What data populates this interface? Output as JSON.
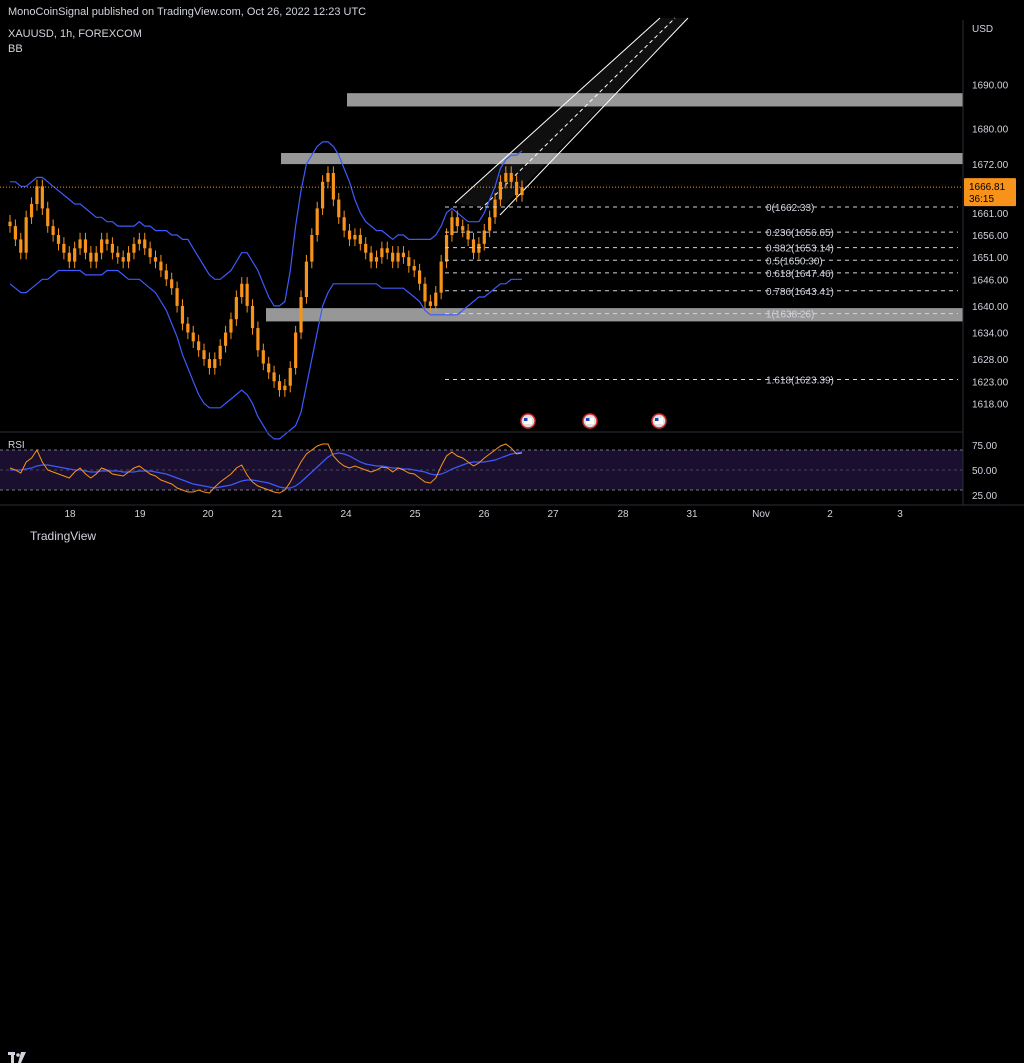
{
  "header": {
    "published": "MonoCoinSignal published on TradingView.com, Oct 26, 2022 12:23 UTC",
    "symbol": "XAUUSD, 1h, FOREXCOM",
    "indicator": "BB",
    "currency": "USD",
    "rsi_label": "RSI"
  },
  "price_tag": {
    "price": "1666.81",
    "countdown": "36:15"
  },
  "footer": {
    "brand": "TradingView"
  },
  "colors": {
    "candle": "#f7931a",
    "band": "#3d5afe",
    "zone": "#b2b2b2",
    "rsi_line": "#f7931a",
    "rsi_ma": "#3d5afe",
    "rsi_bg": "#1a0f2e",
    "text": "#d1d4dc"
  },
  "chart_data": {
    "type": "line",
    "symbol": "XAUUSD",
    "timeframe": "1h",
    "ylim": [
      1612,
      1700
    ],
    "y_ticks": [
      "1690.00",
      "1680.00",
      "1672.00",
      "1661.00",
      "1656.00",
      "1651.00",
      "1646.00",
      "1640.00",
      "1634.00",
      "1628.00",
      "1623.00",
      "1618.00"
    ],
    "x_ticks": [
      "18",
      "19",
      "20",
      "21",
      "24",
      "25",
      "26",
      "27",
      "28",
      "31",
      "Nov",
      "2",
      "3"
    ],
    "last_price": 1666.81,
    "fib_levels": [
      {
        "label": "0(1662.33)",
        "value": 1662.33
      },
      {
        "label": "0.236(1656.65)",
        "value": 1656.65
      },
      {
        "label": "0.382(1653.14)",
        "value": 1653.14
      },
      {
        "label": "0.5(1650.30)",
        "value": 1650.3
      },
      {
        "label": "0.618(1647.46)",
        "value": 1647.46
      },
      {
        "label": "0.786(1643.41)",
        "value": 1643.41
      },
      {
        "label": "1(1638.26)",
        "value": 1638.26
      },
      {
        "label": "1.618(1623.39)",
        "value": 1623.39
      }
    ],
    "zones": [
      {
        "from": 1685,
        "to": 1688
      },
      {
        "from": 1672,
        "to": 1674.5
      },
      {
        "from": 1636.5,
        "to": 1639.5
      }
    ],
    "series": [
      {
        "close": [
          1658,
          1655,
          1652,
          1660,
          1663,
          1667,
          1662,
          1658,
          1656,
          1654,
          1652,
          1650,
          1653,
          1655,
          1652,
          1650,
          1652,
          1655,
          1654,
          1652,
          1651,
          1650,
          1652,
          1654,
          1655,
          1653,
          1651,
          1650,
          1648,
          1646,
          1644,
          1640,
          1636,
          1634,
          1632,
          1630,
          1628,
          1626,
          1628,
          1631,
          1634,
          1637,
          1642,
          1645,
          1640,
          1635,
          1630,
          1627,
          1625,
          1623,
          1621,
          1622,
          1626,
          1634,
          1642,
          1650,
          1656,
          1662,
          1668,
          1670,
          1664,
          1660,
          1657,
          1655,
          1656,
          1654,
          1652,
          1650,
          1651,
          1653,
          1652,
          1650,
          1652,
          1651,
          1649,
          1648,
          1645,
          1641,
          1640,
          1643,
          1650,
          1656,
          1660,
          1658,
          1657,
          1655,
          1652,
          1654,
          1657,
          1660,
          1664,
          1668,
          1670,
          1668,
          1665,
          1666.81
        ]
      },
      {
        "name": "",
        "upper": [
          1668,
          1668,
          1667,
          1667,
          1668,
          1669,
          1669,
          1668,
          1667,
          1666,
          1665,
          1664,
          1663,
          1663,
          1662,
          1661,
          1660,
          1660,
          1659,
          1659,
          1658,
          1658,
          1658,
          1658,
          1659,
          1658,
          1658,
          1657,
          1657,
          1657,
          1656,
          1656,
          1655,
          1655,
          1653,
          1651,
          1649,
          1647,
          1646,
          1646,
          1647,
          1648,
          1650,
          1652,
          1652,
          1650,
          1648,
          1645,
          1642,
          1640,
          1640,
          1641,
          1648,
          1658,
          1666,
          1672,
          1674,
          1676,
          1677,
          1677,
          1676,
          1674,
          1671,
          1668,
          1664,
          1661,
          1659,
          1658,
          1657,
          1657,
          1656,
          1655,
          1656,
          1656,
          1655,
          1655,
          1655,
          1655,
          1655,
          1656,
          1658,
          1661,
          1662,
          1661,
          1660,
          1659,
          1659,
          1659,
          1661,
          1664,
          1667,
          1671,
          1673,
          1674,
          1674,
          1675
        ]
      },
      {
        "name": "",
        "lower": [
          1645,
          1644,
          1643,
          1643,
          1644,
          1645,
          1646,
          1646,
          1647,
          1648,
          1648,
          1648,
          1648,
          1648,
          1647,
          1647,
          1647,
          1647,
          1648,
          1648,
          1648,
          1647,
          1646,
          1646,
          1646,
          1645,
          1644,
          1643,
          1641,
          1639,
          1636,
          1633,
          1629,
          1626,
          1623,
          1620,
          1618,
          1617,
          1617,
          1617,
          1618,
          1619,
          1620,
          1621,
          1620,
          1618,
          1615,
          1613,
          1611,
          1610,
          1610,
          1611,
          1612,
          1613,
          1616,
          1622,
          1628,
          1634,
          1640,
          1643,
          1645,
          1645,
          1645,
          1645,
          1645,
          1645,
          1645,
          1645,
          1645,
          1644,
          1644,
          1644,
          1644,
          1644,
          1643,
          1642,
          1641,
          1639,
          1638,
          1638,
          1638,
          1638,
          1638,
          1638,
          1639,
          1640,
          1641,
          1642,
          1642,
          1643,
          1644,
          1645,
          1645,
          1646,
          1646,
          1646
        ]
      },
      {
        "name": "",
        "rsi": [
          52,
          50,
          47,
          58,
          62,
          70,
          58,
          50,
          48,
          46,
          44,
          42,
          48,
          52,
          46,
          42,
          46,
          52,
          50,
          46,
          45,
          44,
          48,
          52,
          54,
          50,
          46,
          44,
          40,
          38,
          36,
          32,
          30,
          28,
          28,
          30,
          28,
          27,
          33,
          38,
          42,
          46,
          52,
          55,
          45,
          38,
          34,
          32,
          30,
          28,
          27,
          30,
          38,
          48,
          58,
          66,
          70,
          74,
          76,
          76,
          64,
          58,
          54,
          52,
          54,
          52,
          50,
          48,
          50,
          53,
          52,
          48,
          52,
          50,
          47,
          46,
          42,
          38,
          37,
          42,
          54,
          64,
          68,
          64,
          62,
          58,
          54,
          57,
          62,
          66,
          70,
          74,
          76,
          72,
          66,
          67
        ]
      },
      {
        "name": "",
        "rsi_ma": [
          50,
          50,
          50,
          51,
          52,
          54,
          55,
          55,
          54,
          53,
          52,
          51,
          50,
          50,
          49,
          48,
          48,
          49,
          49,
          49,
          49,
          48,
          48,
          48,
          49,
          49,
          49,
          48,
          47,
          46,
          44,
          42,
          40,
          38,
          36,
          35,
          34,
          33,
          32,
          33,
          34,
          35,
          37,
          39,
          40,
          40,
          39,
          38,
          37,
          35,
          33,
          32,
          32,
          34,
          38,
          43,
          48,
          53,
          58,
          63,
          66,
          67,
          66,
          64,
          61,
          58,
          56,
          55,
          54,
          54,
          53,
          52,
          52,
          51,
          51,
          50,
          49,
          48,
          46,
          45,
          46,
          48,
          51,
          53,
          55,
          57,
          58,
          58,
          58,
          59,
          60,
          62,
          64,
          66,
          67,
          68
        ]
      }
    ],
    "rsi_scale": {
      "ylim": [
        20,
        80
      ],
      "ticks": [
        "75.00",
        "50.00",
        "25.00"
      ],
      "bands": [
        70,
        30
      ]
    }
  }
}
